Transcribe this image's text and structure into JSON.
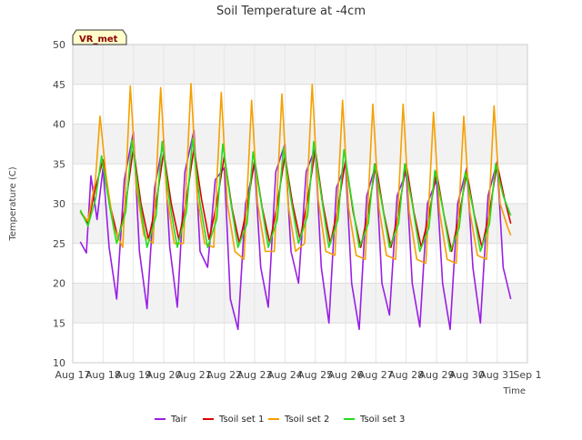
{
  "chart_data": {
    "type": "line",
    "title": "Soil Temperature at -4cm",
    "xlabel": "Time",
    "ylabel": "Temperature (C)",
    "badge": "VR_met",
    "ylim": [
      10,
      50
    ],
    "yticks": [
      10,
      15,
      20,
      25,
      30,
      35,
      40,
      45,
      50
    ],
    "xlim": [
      17,
      32
    ],
    "xticks": [
      {
        "x": 17,
        "label": "Aug 17"
      },
      {
        "x": 18,
        "label": "Aug 18"
      },
      {
        "x": 19,
        "label": "Aug 19"
      },
      {
        "x": 20,
        "label": "Aug 20"
      },
      {
        "x": 21,
        "label": "Aug 21"
      },
      {
        "x": 22,
        "label": "Aug 22"
      },
      {
        "x": 23,
        "label": "Aug 23"
      },
      {
        "x": 24,
        "label": "Aug 24"
      },
      {
        "x": 25,
        "label": "Aug 25"
      },
      {
        "x": 26,
        "label": "Aug 26"
      },
      {
        "x": 27,
        "label": "Aug 27"
      },
      {
        "x": 28,
        "label": "Aug 28"
      },
      {
        "x": 29,
        "label": "Aug 29"
      },
      {
        "x": 30,
        "label": "Aug 30"
      },
      {
        "x": 31,
        "label": "Aug 31"
      },
      {
        "x": 32,
        "label": "Sep 1"
      }
    ],
    "grid": true,
    "legend_position": "bottom",
    "series": [
      {
        "name": "Tair",
        "color": "#9a1ee6",
        "x": [
          17.25,
          17.45,
          17.6,
          17.8,
          18.0,
          18.2,
          18.45,
          18.7,
          19.0,
          19.2,
          19.45,
          19.7,
          20.0,
          20.2,
          20.45,
          20.7,
          21.0,
          21.2,
          21.45,
          21.7,
          22.0,
          22.2,
          22.45,
          22.7,
          23.0,
          23.2,
          23.45,
          23.7,
          24.0,
          24.2,
          24.45,
          24.7,
          25.0,
          25.2,
          25.45,
          25.7,
          26.0,
          26.2,
          26.45,
          26.7,
          27.0,
          27.2,
          27.45,
          27.7,
          28.0,
          28.2,
          28.45,
          28.7,
          29.0,
          29.2,
          29.45,
          29.7,
          30.0,
          30.2,
          30.45,
          30.7,
          31.0,
          31.2,
          31.45
        ],
        "y": [
          25.2,
          23.8,
          33.5,
          28.0,
          34.5,
          24.5,
          18.0,
          33.0,
          39.0,
          24.0,
          16.8,
          32.0,
          38.0,
          24.5,
          17.0,
          34.0,
          39.2,
          24.0,
          22.0,
          33.0,
          34.5,
          18.0,
          14.2,
          30.0,
          35.0,
          22.0,
          17.0,
          34.0,
          37.5,
          24.0,
          20.0,
          34.0,
          37.0,
          22.0,
          15.0,
          32.0,
          35.0,
          20.0,
          14.2,
          31.0,
          35.0,
          20.0,
          16.0,
          31.0,
          34.0,
          20.0,
          14.5,
          30.0,
          33.0,
          20.0,
          14.2,
          30.0,
          34.5,
          22.0,
          15.0,
          31.0,
          35.3,
          22.0,
          18.0
        ]
      },
      {
        "name": "Tsoil set 1",
        "color": "#dd0000",
        "x": [
          17.25,
          17.5,
          17.75,
          18.0,
          18.25,
          18.5,
          18.75,
          19.0,
          19.25,
          19.5,
          19.75,
          20.0,
          20.25,
          20.5,
          20.75,
          21.0,
          21.25,
          21.5,
          21.75,
          22.0,
          22.25,
          22.5,
          22.75,
          23.0,
          23.25,
          23.5,
          23.75,
          24.0,
          24.25,
          24.5,
          24.75,
          25.0,
          25.25,
          25.5,
          25.75,
          26.0,
          26.25,
          26.5,
          26.75,
          27.0,
          27.25,
          27.5,
          27.75,
          28.0,
          28.25,
          28.5,
          28.75,
          29.0,
          29.25,
          29.5,
          29.75,
          30.0,
          30.25,
          30.5,
          30.75,
          31.0,
          31.25,
          31.45
        ],
        "y": [
          29.0,
          27.5,
          32.0,
          35.5,
          29.5,
          25.5,
          30.0,
          37.0,
          30.0,
          25.5,
          30.0,
          36.5,
          30.0,
          25.5,
          30.5,
          37.0,
          30.5,
          25.5,
          30.0,
          36.0,
          29.5,
          25.0,
          29.5,
          35.5,
          29.5,
          25.0,
          30.0,
          36.0,
          30.0,
          25.5,
          30.5,
          36.8,
          30.0,
          25.0,
          29.5,
          35.5,
          29.0,
          24.5,
          29.0,
          35.0,
          29.0,
          24.5,
          29.0,
          35.0,
          29.0,
          24.5,
          28.5,
          34.0,
          28.5,
          24.0,
          28.5,
          34.0,
          28.5,
          24.5,
          29.0,
          35.0,
          30.5,
          27.5
        ]
      },
      {
        "name": "Tsoil set 2",
        "color": "#f5a000",
        "x": [
          17.25,
          17.5,
          17.75,
          17.9,
          18.1,
          18.35,
          18.65,
          18.9,
          19.1,
          19.35,
          19.65,
          19.9,
          20.1,
          20.35,
          20.65,
          20.9,
          21.1,
          21.35,
          21.65,
          21.9,
          22.1,
          22.35,
          22.65,
          22.9,
          23.1,
          23.35,
          23.65,
          23.9,
          24.1,
          24.35,
          24.65,
          24.9,
          25.1,
          25.35,
          25.65,
          25.9,
          26.1,
          26.35,
          26.65,
          26.9,
          27.1,
          27.35,
          27.65,
          27.9,
          28.1,
          28.35,
          28.65,
          28.9,
          29.1,
          29.35,
          29.65,
          29.9,
          30.1,
          30.35,
          30.65,
          30.9,
          31.1,
          31.35,
          31.45
        ],
        "y": [
          29.0,
          27.8,
          33.0,
          41.0,
          33.5,
          27.0,
          24.5,
          44.8,
          32.0,
          26.0,
          25.0,
          44.6,
          31.0,
          25.0,
          25.0,
          45.1,
          31.0,
          25.0,
          24.5,
          44.0,
          30.0,
          24.0,
          23.0,
          43.0,
          30.0,
          24.0,
          24.0,
          43.8,
          30.0,
          24.0,
          25.0,
          45.0,
          30.5,
          24.0,
          23.5,
          43.0,
          29.5,
          23.5,
          23.0,
          42.5,
          29.5,
          23.5,
          23.0,
          42.5,
          29.0,
          23.0,
          22.5,
          41.5,
          29.0,
          23.0,
          22.5,
          41.0,
          29.0,
          23.5,
          23.0,
          42.3,
          30.0,
          27.0,
          26.0
        ]
      },
      {
        "name": "Tsoil set 3",
        "color": "#22dd22",
        "x": [
          17.25,
          17.5,
          17.75,
          17.95,
          18.2,
          18.45,
          18.75,
          18.95,
          19.2,
          19.45,
          19.75,
          19.95,
          20.2,
          20.45,
          20.75,
          20.95,
          21.2,
          21.45,
          21.75,
          21.95,
          22.2,
          22.45,
          22.75,
          22.95,
          23.2,
          23.45,
          23.75,
          23.95,
          24.2,
          24.45,
          24.75,
          24.95,
          25.2,
          25.45,
          25.75,
          25.95,
          26.2,
          26.45,
          26.75,
          26.95,
          27.2,
          27.45,
          27.75,
          27.95,
          28.2,
          28.45,
          28.75,
          28.95,
          29.2,
          29.45,
          29.75,
          29.95,
          30.2,
          30.45,
          30.75,
          30.95,
          31.2,
          31.45
        ],
        "y": [
          29.2,
          27.2,
          30.5,
          36.0,
          30.0,
          25.0,
          29.0,
          38.0,
          30.5,
          24.5,
          28.5,
          37.8,
          30.0,
          24.5,
          29.0,
          38.2,
          30.0,
          24.5,
          28.0,
          37.5,
          30.5,
          24.5,
          27.5,
          36.5,
          30.5,
          24.5,
          28.0,
          37.0,
          30.5,
          25.0,
          28.5,
          37.8,
          31.0,
          24.5,
          28.0,
          36.8,
          30.5,
          24.5,
          27.5,
          35.0,
          30.0,
          24.5,
          27.5,
          35.0,
          30.0,
          24.0,
          27.0,
          34.2,
          29.5,
          24.0,
          27.0,
          34.0,
          29.5,
          24.0,
          27.5,
          35.0,
          31.0,
          28.5
        ]
      }
    ]
  }
}
